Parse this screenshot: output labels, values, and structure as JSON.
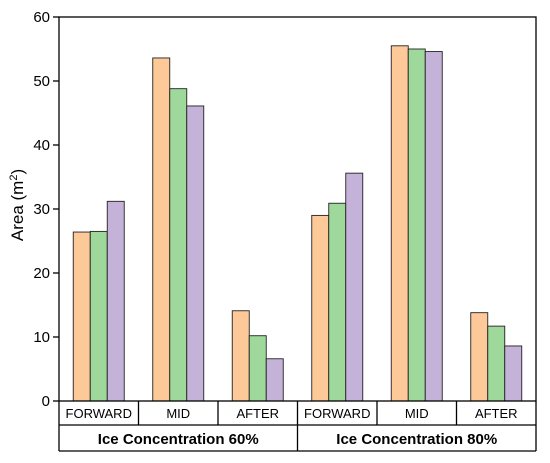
{
  "chart_data": {
    "type": "bar",
    "ylabel": "Area (m²)",
    "ylabel_text": "Area (m",
    "ylabel_sup": "2",
    "ylabel_close": ")",
    "ylim": [
      0,
      60
    ],
    "yticks": [
      "0",
      "10",
      "20",
      "30",
      "40",
      "50",
      "60"
    ],
    "grid": false,
    "legend": "none",
    "series_colors": [
      "#fdc998",
      "#9ed89a",
      "#c4b2d8"
    ],
    "groups": [
      {
        "label": "Ice Concentration 60%",
        "categories": [
          {
            "label": "FORWARD",
            "values": [
              26.4,
              26.5,
              31.2
            ]
          },
          {
            "label": "MID",
            "values": [
              53.6,
              48.8,
              46.1
            ]
          },
          {
            "label": "AFTER",
            "values": [
              14.1,
              10.2,
              6.6
            ]
          }
        ]
      },
      {
        "label": "Ice Concentration 80%",
        "categories": [
          {
            "label": "FORWARD",
            "values": [
              29.0,
              30.9,
              35.6
            ]
          },
          {
            "label": "MID",
            "values": [
              55.5,
              55.0,
              54.6
            ]
          },
          {
            "label": "AFTER",
            "values": [
              13.8,
              11.7,
              8.6
            ]
          }
        ]
      }
    ]
  }
}
